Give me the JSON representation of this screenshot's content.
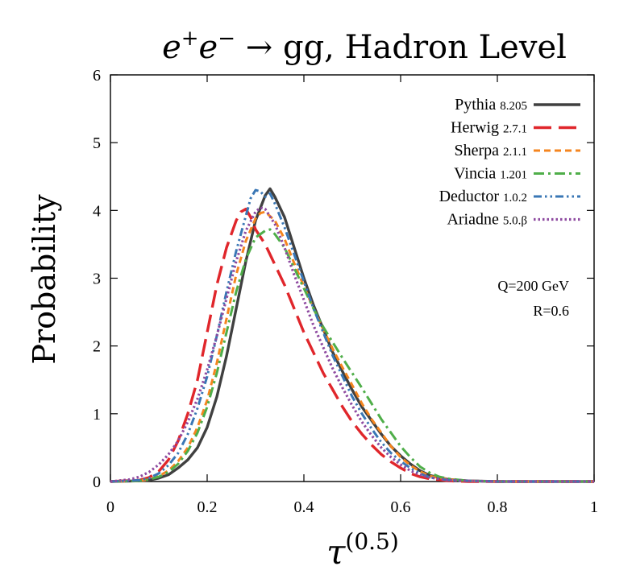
{
  "chart_data": {
    "type": "line",
    "title": {
      "main": "e",
      "sup1": "+",
      "mid": "e",
      "sup2": "−",
      "rest": " → gg,  Hadron Level"
    },
    "xlabel": {
      "base": "τ",
      "sup": "(0.5)"
    },
    "ylabel": "Probability",
    "xlim": [
      0,
      1
    ],
    "ylim": [
      0,
      6
    ],
    "xticks": [
      "0",
      "0.2",
      "0.4",
      "0.6",
      "0.8",
      "1"
    ],
    "xtick_values": [
      0,
      0.2,
      0.4,
      0.6,
      0.8,
      1
    ],
    "yticks": [
      "0",
      "1",
      "2",
      "3",
      "4",
      "5",
      "6"
    ],
    "ytick_values": [
      0,
      1,
      2,
      3,
      4,
      5,
      6
    ],
    "annotations": [
      "Q=200 GeV",
      "R=0.6"
    ],
    "legend_position": "top-right",
    "series": [
      {
        "name": "Pythia",
        "version": "8.205",
        "color": "#404040",
        "dash": "solid",
        "x": [
          0,
          0.06,
          0.08,
          0.1,
          0.12,
          0.14,
          0.16,
          0.18,
          0.2,
          0.22,
          0.24,
          0.26,
          0.28,
          0.3,
          0.32,
          0.33,
          0.34,
          0.36,
          0.38,
          0.4,
          0.42,
          0.44,
          0.46,
          0.48,
          0.5,
          0.52,
          0.54,
          0.56,
          0.58,
          0.6,
          0.62,
          0.64,
          0.66,
          0.7,
          0.74,
          0.8,
          1.0
        ],
        "y": [
          0,
          0.01,
          0.02,
          0.05,
          0.1,
          0.2,
          0.32,
          0.5,
          0.8,
          1.25,
          1.85,
          2.55,
          3.25,
          3.85,
          4.22,
          4.32,
          4.2,
          3.9,
          3.45,
          3.0,
          2.6,
          2.25,
          1.9,
          1.62,
          1.35,
          1.1,
          0.9,
          0.7,
          0.52,
          0.38,
          0.26,
          0.16,
          0.09,
          0.03,
          0.01,
          0,
          0
        ]
      },
      {
        "name": "Herwig",
        "version": "2.7.1",
        "color": "#e0262b",
        "dash": "long",
        "x": [
          0,
          0.06,
          0.08,
          0.1,
          0.12,
          0.14,
          0.16,
          0.18,
          0.2,
          0.22,
          0.24,
          0.26,
          0.27,
          0.28,
          0.29,
          0.3,
          0.32,
          0.34,
          0.36,
          0.38,
          0.4,
          0.42,
          0.44,
          0.46,
          0.48,
          0.5,
          0.52,
          0.54,
          0.56,
          0.58,
          0.6,
          0.62,
          0.64,
          0.66,
          0.7,
          0.74,
          0.8,
          1.0
        ],
        "y": [
          0,
          0.02,
          0.06,
          0.15,
          0.32,
          0.6,
          1.0,
          1.5,
          2.2,
          2.9,
          3.45,
          3.85,
          3.98,
          4.02,
          3.9,
          3.72,
          3.5,
          3.2,
          2.9,
          2.55,
          2.2,
          1.9,
          1.6,
          1.35,
          1.1,
          0.88,
          0.7,
          0.54,
          0.4,
          0.29,
          0.2,
          0.12,
          0.07,
          0.04,
          0.01,
          0,
          0,
          0
        ]
      },
      {
        "name": "Sherpa",
        "version": "2.1.1",
        "color": "#f5851f",
        "dash": "short",
        "x": [
          0,
          0.06,
          0.08,
          0.1,
          0.12,
          0.14,
          0.16,
          0.18,
          0.2,
          0.22,
          0.24,
          0.26,
          0.28,
          0.3,
          0.31,
          0.32,
          0.34,
          0.36,
          0.38,
          0.4,
          0.42,
          0.44,
          0.46,
          0.48,
          0.5,
          0.52,
          0.54,
          0.56,
          0.58,
          0.6,
          0.62,
          0.64,
          0.66,
          0.7,
          0.74,
          0.8,
          1.0
        ],
        "y": [
          0,
          0.01,
          0.03,
          0.08,
          0.16,
          0.3,
          0.5,
          0.8,
          1.2,
          1.75,
          2.4,
          3.05,
          3.55,
          3.88,
          3.96,
          3.98,
          3.85,
          3.58,
          3.22,
          2.88,
          2.55,
          2.25,
          1.95,
          1.68,
          1.42,
          1.15,
          0.92,
          0.72,
          0.52,
          0.36,
          0.24,
          0.15,
          0.08,
          0.03,
          0.01,
          0,
          0
        ]
      },
      {
        "name": "Vincia",
        "version": "1.201",
        "color": "#4fae49",
        "dash": "dashdot",
        "x": [
          0,
          0.06,
          0.08,
          0.1,
          0.12,
          0.14,
          0.16,
          0.18,
          0.2,
          0.22,
          0.24,
          0.26,
          0.28,
          0.3,
          0.32,
          0.33,
          0.34,
          0.36,
          0.38,
          0.4,
          0.42,
          0.44,
          0.46,
          0.48,
          0.5,
          0.52,
          0.54,
          0.56,
          0.58,
          0.6,
          0.62,
          0.64,
          0.66,
          0.68,
          0.7,
          0.74,
          0.8,
          1.0
        ],
        "y": [
          0,
          0.01,
          0.03,
          0.07,
          0.14,
          0.26,
          0.45,
          0.72,
          1.1,
          1.6,
          2.2,
          2.8,
          3.28,
          3.6,
          3.7,
          3.72,
          3.65,
          3.45,
          3.15,
          2.85,
          2.55,
          2.28,
          2.05,
          1.82,
          1.6,
          1.38,
          1.15,
          0.92,
          0.72,
          0.52,
          0.36,
          0.22,
          0.13,
          0.07,
          0.04,
          0.01,
          0,
          0
        ]
      },
      {
        "name": "Deductor",
        "version": "1.0.2",
        "color": "#3a77b5",
        "dash": "dashdotdot",
        "x": [
          0,
          0.06,
          0.08,
          0.1,
          0.12,
          0.14,
          0.16,
          0.18,
          0.2,
          0.22,
          0.24,
          0.26,
          0.28,
          0.29,
          0.3,
          0.31,
          0.32,
          0.33,
          0.34,
          0.36,
          0.38,
          0.4,
          0.42,
          0.44,
          0.46,
          0.48,
          0.5,
          0.52,
          0.54,
          0.56,
          0.58,
          0.6,
          0.62,
          0.64,
          0.66,
          0.7,
          0.74,
          0.8,
          1.0
        ],
        "y": [
          0,
          0.02,
          0.05,
          0.12,
          0.24,
          0.42,
          0.7,
          1.08,
          1.55,
          2.15,
          2.8,
          3.4,
          3.92,
          4.18,
          4.3,
          4.28,
          4.2,
          4.25,
          4.1,
          3.75,
          3.35,
          2.95,
          2.55,
          2.2,
          1.85,
          1.55,
          1.25,
          1.0,
          0.78,
          0.58,
          0.42,
          0.3,
          0.2,
          0.12,
          0.06,
          0.02,
          0.01,
          0,
          0
        ]
      },
      {
        "name": "Ariadne",
        "version": "5.0.β",
        "color": "#8e4aa0",
        "dash": "dotted",
        "x": [
          0,
          0.04,
          0.06,
          0.08,
          0.1,
          0.12,
          0.14,
          0.16,
          0.18,
          0.2,
          0.22,
          0.24,
          0.26,
          0.28,
          0.3,
          0.31,
          0.32,
          0.34,
          0.36,
          0.38,
          0.4,
          0.42,
          0.44,
          0.46,
          0.48,
          0.5,
          0.52,
          0.54,
          0.56,
          0.58,
          0.6,
          0.62,
          0.64,
          0.66,
          0.7,
          0.74,
          0.8,
          1.0
        ],
        "y": [
          0,
          0.03,
          0.07,
          0.14,
          0.25,
          0.4,
          0.6,
          0.88,
          1.22,
          1.65,
          2.15,
          2.7,
          3.25,
          3.7,
          3.98,
          4.04,
          4.02,
          3.8,
          3.45,
          3.05,
          2.68,
          2.3,
          1.98,
          1.66,
          1.38,
          1.12,
          0.88,
          0.68,
          0.5,
          0.36,
          0.25,
          0.16,
          0.1,
          0.06,
          0.02,
          0.01,
          0,
          0
        ]
      }
    ]
  }
}
